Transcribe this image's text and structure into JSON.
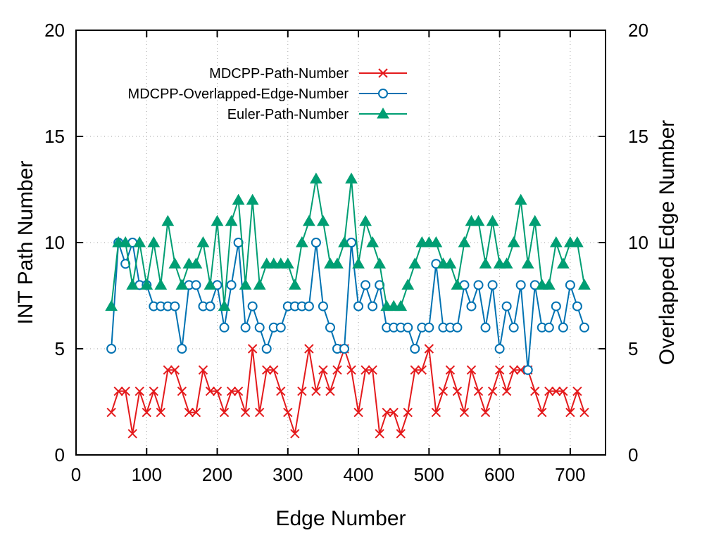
{
  "chart_data": {
    "type": "line",
    "xlabel": "Edge Number",
    "ylabel": "INT Path Number",
    "y2label": "Overlapped Edge Number",
    "xlim": [
      0,
      750
    ],
    "ylim": [
      0,
      20
    ],
    "y2lim": [
      0,
      20
    ],
    "x_ticks": [
      "0",
      "100",
      "200",
      "300",
      "400",
      "500",
      "600",
      "700"
    ],
    "y_ticks": [
      "0",
      "5",
      "10",
      "15",
      "20"
    ],
    "y2_ticks": [
      "0",
      "5",
      "10",
      "15",
      "20"
    ],
    "grid": true,
    "legend_position": "top-center",
    "x": [
      50,
      60,
      70,
      80,
      90,
      100,
      110,
      120,
      130,
      140,
      150,
      160,
      170,
      180,
      190,
      200,
      210,
      220,
      230,
      240,
      250,
      260,
      270,
      280,
      290,
      300,
      310,
      320,
      330,
      340,
      350,
      360,
      370,
      380,
      390,
      400,
      410,
      420,
      430,
      440,
      450,
      460,
      470,
      480,
      490,
      500,
      510,
      520,
      530,
      540,
      550,
      560,
      570,
      580,
      590,
      600,
      610,
      620,
      630,
      640,
      650,
      660,
      670,
      680,
      690,
      700,
      710,
      720
    ],
    "series": [
      {
        "name": "MDCPP-Path-Number",
        "color": "#e41a1c",
        "marker": "cross",
        "values": [
          2,
          3,
          3,
          1,
          3,
          2,
          3,
          2,
          4,
          4,
          3,
          2,
          2,
          4,
          3,
          3,
          2,
          3,
          3,
          2,
          5,
          2,
          4,
          4,
          3,
          2,
          1,
          3,
          5,
          3,
          4,
          3,
          4,
          5,
          4,
          2,
          4,
          4,
          1,
          2,
          2,
          1,
          2,
          4,
          4,
          5,
          2,
          3,
          4,
          3,
          2,
          4,
          3,
          2,
          3,
          4,
          3,
          4,
          4,
          4,
          3,
          2,
          3,
          3,
          3,
          2,
          3,
          2
        ]
      },
      {
        "name": "MDCPP-Overlapped-Edge-Number",
        "color": "#0072b2",
        "marker": "circle",
        "values": [
          5,
          10,
          9,
          10,
          8,
          8,
          7,
          7,
          7,
          7,
          5,
          8,
          8,
          7,
          7,
          8,
          6,
          8,
          10,
          6,
          7,
          6,
          5,
          6,
          6,
          7,
          7,
          7,
          7,
          10,
          7,
          6,
          5,
          5,
          10,
          7,
          8,
          7,
          8,
          6,
          6,
          6,
          6,
          5,
          6,
          6,
          9,
          6,
          6,
          6,
          8,
          7,
          8,
          6,
          8,
          5,
          7,
          6,
          8,
          4,
          8,
          6,
          6,
          7,
          6,
          8,
          7,
          6
        ]
      },
      {
        "name": "Euler-Path-Number",
        "color": "#009e73",
        "marker": "triangle",
        "values": [
          7,
          10,
          10,
          8,
          10,
          8,
          10,
          8,
          11,
          9,
          8,
          9,
          9,
          10,
          8,
          11,
          7,
          11,
          12,
          8,
          12,
          8,
          9,
          9,
          9,
          9,
          8,
          10,
          11,
          13,
          11,
          9,
          9,
          10,
          13,
          9,
          11,
          10,
          9,
          7,
          7,
          7,
          8,
          9,
          10,
          10,
          10,
          9,
          9,
          8,
          10,
          11,
          11,
          9,
          11,
          9,
          9,
          10,
          12,
          9,
          11,
          8,
          8,
          10,
          9,
          10,
          10,
          8
        ]
      }
    ]
  }
}
